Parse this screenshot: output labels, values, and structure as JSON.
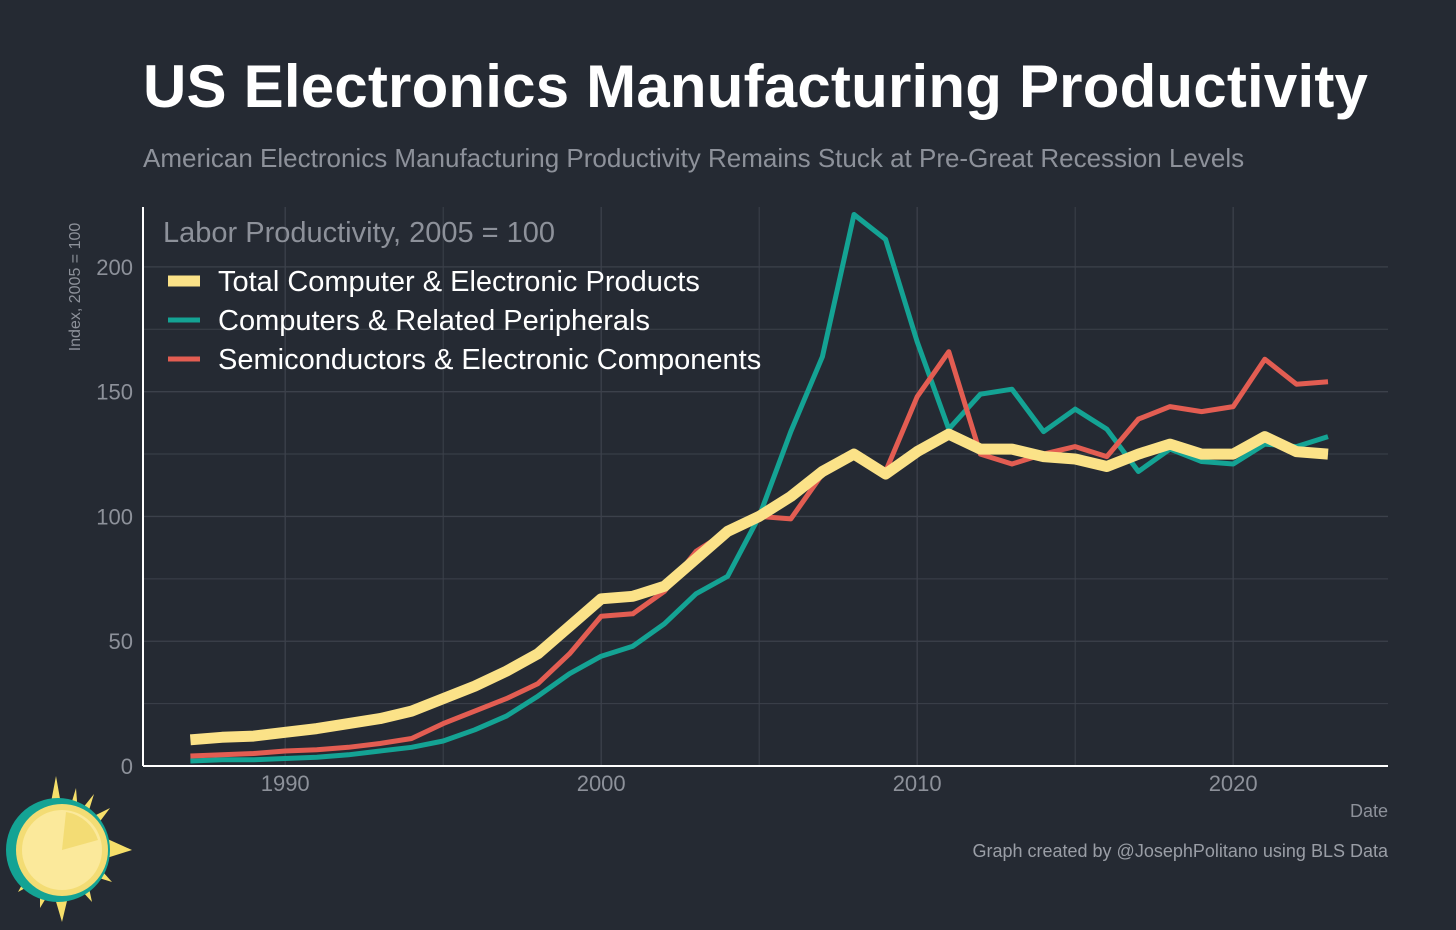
{
  "title": "US Electronics Manufacturing Productivity",
  "subtitle": "American Electronics Manufacturing Productivity Remains Stuck at Pre-Great Recession Levels",
  "credit": "Graph created by @JosephPolitano using BLS Data",
  "colors": {
    "background": "#252a33",
    "grid": "#3c414b",
    "axis": "#ffffff",
    "text_muted": "#8d919a",
    "total": "#fbe288",
    "computers": "#14a394",
    "semis": "#e35d52"
  },
  "chart_data": {
    "type": "line",
    "legend_title": "Labor Productivity, 2005 = 100",
    "legend_position": "top-left",
    "xlabel": "Date",
    "ylabel": "Index, 2005 = 100",
    "x_ticks": [
      1990,
      2000,
      2010,
      2020
    ],
    "y_ticks": [
      0,
      50,
      100,
      150,
      200
    ],
    "xlim": [
      1985.5,
      2024.9
    ],
    "ylim": [
      0,
      224
    ],
    "grid": true,
    "x": [
      1987,
      1988,
      1989,
      1990,
      1991,
      1992,
      1993,
      1994,
      1995,
      1996,
      1997,
      1998,
      1999,
      2000,
      2001,
      2002,
      2003,
      2004,
      2005,
      2006,
      2007,
      2008,
      2009,
      2010,
      2011,
      2012,
      2013,
      2014,
      2015,
      2016,
      2017,
      2018,
      2019,
      2020,
      2021,
      2022,
      2023
    ],
    "series": [
      {
        "name": "Total Computer & Electronic Products",
        "color_key": "total",
        "values": [
          10.5,
          11.5,
          12,
          13.5,
          15,
          17,
          19,
          22,
          27,
          32,
          38,
          45,
          56,
          67,
          68,
          72,
          83,
          94,
          100,
          108,
          118,
          125,
          117,
          126,
          133,
          127,
          127,
          124,
          123,
          120,
          125,
          129,
          125,
          125,
          132,
          126,
          125
        ]
      },
      {
        "name": "Computers & Related Peripherals",
        "color_key": "computers",
        "values": [
          2,
          2.5,
          2.5,
          3,
          3.5,
          4.5,
          6,
          7.5,
          10,
          14.5,
          20,
          28,
          37,
          44,
          48,
          57,
          69,
          76,
          100,
          134,
          164,
          221,
          211,
          170,
          135,
          149,
          151,
          134,
          143,
          135,
          118,
          127,
          122,
          121,
          129,
          128,
          132
        ]
      },
      {
        "name": "Semiconductors & Electronic Components",
        "color_key": "semis",
        "values": [
          4,
          4.5,
          5,
          6,
          6.5,
          7.5,
          9,
          11,
          17,
          22,
          27,
          33,
          45,
          60,
          61,
          70,
          86,
          94,
          100,
          99,
          117,
          126,
          118,
          148,
          166,
          125,
          121,
          125,
          128,
          124,
          139,
          144,
          142,
          144,
          163,
          153,
          154
        ]
      }
    ]
  }
}
